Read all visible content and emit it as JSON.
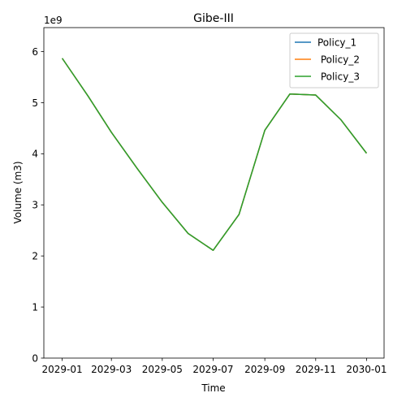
{
  "chart_data": {
    "type": "line",
    "title": "Gibe-III",
    "xlabel": "Time",
    "ylabel": "Volume (m3)",
    "y_multiplier_label": "1e9",
    "x_ticks": [
      "2029-01",
      "2029-03",
      "2029-05",
      "2029-07",
      "2029-09",
      "2029-11",
      "2030-01"
    ],
    "y_ticks": [
      "0",
      "1",
      "2",
      "3",
      "4",
      "5",
      "6"
    ],
    "xlim": [
      "2028-12-10",
      "2030-01-22"
    ],
    "ylim": [
      0,
      6.47
    ],
    "x": [
      "2029-01-01",
      "2029-02-01",
      "2029-03-01",
      "2029-04-01",
      "2029-05-01",
      "2029-06-01",
      "2029-07-01",
      "2029-08-01",
      "2029-09-01",
      "2029-10-01",
      "2029-11-01",
      "2029-12-01",
      "2030-01-01"
    ],
    "series": [
      {
        "name": "Policy_1",
        "color": "#1f77b4",
        "values": [
          5.87,
          5.13,
          4.42,
          3.71,
          3.05,
          2.44,
          2.11,
          2.81,
          4.46,
          5.17,
          5.15,
          4.67,
          4.01
        ]
      },
      {
        "name": " Policy_2",
        "color": "#ff7f0e",
        "values": [
          5.87,
          5.13,
          4.42,
          3.71,
          3.05,
          2.44,
          2.11,
          2.81,
          4.46,
          5.17,
          5.15,
          4.67,
          4.01
        ]
      },
      {
        "name": " Policy_3",
        "color": "#2ca02c",
        "values": [
          5.87,
          5.13,
          4.42,
          3.71,
          3.05,
          2.44,
          2.11,
          2.81,
          4.46,
          5.17,
          5.15,
          4.67,
          4.01
        ]
      }
    ],
    "legend_position": "top-right",
    "grid": false
  }
}
